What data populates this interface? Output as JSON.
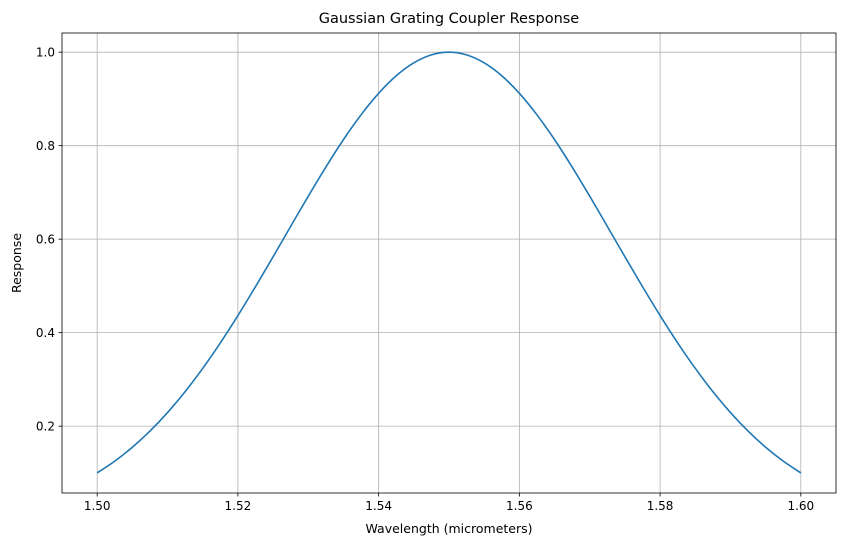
{
  "chart_data": {
    "type": "line",
    "title": "Gaussian Grating Coupler Response",
    "xlabel": "Wavelength (micrometers)",
    "ylabel": "Response",
    "xlim": [
      1.495,
      1.605
    ],
    "ylim": [
      0.057,
      1.041
    ],
    "xticks": [
      1.5,
      1.52,
      1.54,
      1.56,
      1.58,
      1.6
    ],
    "xtick_labels": [
      "1.50",
      "1.52",
      "1.54",
      "1.56",
      "1.58",
      "1.60"
    ],
    "yticks": [
      0.2,
      0.4,
      0.6,
      0.8,
      1.0
    ],
    "ytick_labels": [
      "0.2",
      "0.4",
      "0.6",
      "0.8",
      "1.0"
    ],
    "grid": true,
    "series": [
      {
        "color": "#1f77b4",
        "x": [
          1.5,
          1.5025,
          1.505,
          1.5075,
          1.51,
          1.5125,
          1.515,
          1.5175,
          1.52,
          1.5225,
          1.525,
          1.5275,
          1.53,
          1.5325,
          1.535,
          1.5375,
          1.54,
          1.5425,
          1.545,
          1.5475,
          1.55,
          1.5525,
          1.555,
          1.5575,
          1.56,
          1.5625,
          1.565,
          1.5675,
          1.57,
          1.5725,
          1.575,
          1.5775,
          1.58,
          1.5825,
          1.585,
          1.5875,
          1.59,
          1.5925,
          1.595,
          1.5975,
          1.6
        ],
        "y": [
          0.1,
          0.1252,
          0.1549,
          0.1895,
          0.2291,
          0.2739,
          0.3237,
          0.3781,
          0.4366,
          0.4984,
          0.5624,
          0.6274,
          0.6919,
          0.7543,
          0.8129,
          0.866,
          0.912,
          0.9495,
          0.9772,
          0.9943,
          1.0,
          0.9943,
          0.9772,
          0.9495,
          0.912,
          0.866,
          0.8129,
          0.7543,
          0.6919,
          0.6274,
          0.5624,
          0.4984,
          0.4366,
          0.3781,
          0.3237,
          0.2739,
          0.2291,
          0.1895,
          0.1549,
          0.1252,
          0.1
        ]
      }
    ]
  }
}
